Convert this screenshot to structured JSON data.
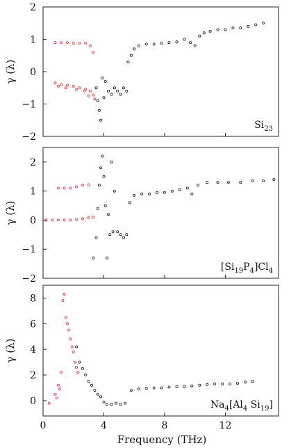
{
  "chart_data": {
    "type": "scatter",
    "shared_x": {
      "label": "Frequency (THz)",
      "ticks": [
        0,
        4,
        8,
        12
      ],
      "range": [
        0,
        15.5
      ]
    },
    "colors": {
      "red": "#e8323c",
      "black": "#1a1a1a"
    },
    "panels": [
      {
        "id": "si23",
        "label_parts": [
          {
            "t": "Si"
          },
          {
            "t": "23",
            "sub": true
          }
        ],
        "ylabel": "γ (λ)",
        "ylim": [
          -2,
          2
        ],
        "yticks": [
          -2,
          -1,
          0,
          1,
          2
        ],
        "series": [
          {
            "name": "red",
            "color": "#e8323c",
            "points": [
              [
                0.8,
                0.9
              ],
              [
                1.2,
                0.9
              ],
              [
                1.6,
                0.9
              ],
              [
                2.0,
                0.88
              ],
              [
                2.4,
                0.88
              ],
              [
                2.8,
                0.88
              ],
              [
                3.1,
                0.8
              ],
              [
                3.3,
                0.6
              ],
              [
                0.8,
                -0.35
              ],
              [
                1.2,
                -0.4
              ],
              [
                1.6,
                -0.42
              ],
              [
                2.0,
                -0.45
              ],
              [
                2.4,
                -0.5
              ],
              [
                2.8,
                -0.55
              ],
              [
                3.1,
                -0.6
              ],
              [
                3.3,
                -0.72
              ],
              [
                1.0,
                -0.45
              ],
              [
                1.5,
                -0.5
              ],
              [
                2.2,
                -0.55
              ],
              [
                2.7,
                -0.6
              ],
              [
                3.0,
                -0.75
              ],
              [
                3.4,
                -0.85
              ]
            ]
          },
          {
            "name": "black",
            "color": "#1a1a1a",
            "points": [
              [
                3.5,
                -0.5
              ],
              [
                3.6,
                -0.9
              ],
              [
                3.7,
                -1.2
              ],
              [
                3.8,
                -1.5
              ],
              [
                3.9,
                -0.2
              ],
              [
                4.0,
                -0.8
              ],
              [
                4.1,
                -0.3
              ],
              [
                4.3,
                -0.6
              ],
              [
                4.5,
                -0.7
              ],
              [
                4.7,
                -0.5
              ],
              [
                4.9,
                -0.6
              ],
              [
                5.1,
                -0.7
              ],
              [
                5.3,
                -0.5
              ],
              [
                5.5,
                -0.6
              ],
              [
                5.6,
                0.3
              ],
              [
                5.8,
                0.5
              ],
              [
                6.0,
                0.7
              ],
              [
                6.3,
                0.8
              ],
              [
                6.8,
                0.85
              ],
              [
                7.3,
                0.85
              ],
              [
                7.8,
                0.88
              ],
              [
                8.3,
                0.9
              ],
              [
                8.8,
                0.92
              ],
              [
                9.3,
                1.0
              ],
              [
                9.7,
                0.9
              ],
              [
                10.0,
                0.8
              ],
              [
                10.3,
                1.1
              ],
              [
                10.6,
                1.2
              ],
              [
                11.0,
                1.25
              ],
              [
                11.5,
                1.3
              ],
              [
                12.0,
                1.3
              ],
              [
                12.5,
                1.35
              ],
              [
                13.0,
                1.35
              ],
              [
                13.5,
                1.4
              ],
              [
                14.0,
                1.45
              ],
              [
                14.5,
                1.5
              ]
            ]
          }
        ]
      },
      {
        "id": "si19p4cl4",
        "label_parts": [
          {
            "t": "[Si"
          },
          {
            "t": "19",
            "sub": true
          },
          {
            "t": "P"
          },
          {
            "t": "4",
            "sub": true
          },
          {
            "t": "]Cl"
          },
          {
            "t": "4",
            "sub": true
          }
        ],
        "ylabel": "γ (λ)",
        "ylim": [
          -2,
          2.5
        ],
        "yticks": [
          -2,
          -1,
          0,
          1,
          2
        ],
        "series": [
          {
            "name": "red",
            "color": "#e8323c",
            "points": [
              [
                0.2,
                0.0
              ],
              [
                0.6,
                0.0
              ],
              [
                1.0,
                0.0
              ],
              [
                1.4,
                0.0
              ],
              [
                1.8,
                0.0
              ],
              [
                2.2,
                0.02
              ],
              [
                2.6,
                0.05
              ],
              [
                3.0,
                0.08
              ],
              [
                3.3,
                0.1
              ],
              [
                1.0,
                1.1
              ],
              [
                1.4,
                1.1
              ],
              [
                1.8,
                1.1
              ],
              [
                2.2,
                1.15
              ],
              [
                2.6,
                1.2
              ],
              [
                3.0,
                1.22
              ]
            ]
          },
          {
            "name": "black",
            "color": "#1a1a1a",
            "points": [
              [
                3.3,
                -1.3
              ],
              [
                3.5,
                -0.6
              ],
              [
                3.6,
                0.4
              ],
              [
                3.7,
                1.2
              ],
              [
                3.8,
                1.8
              ],
              [
                3.9,
                2.2
              ],
              [
                4.0,
                1.5
              ],
              [
                4.1,
                0.5
              ],
              [
                4.2,
                -1.3
              ],
              [
                4.3,
                0.2
              ],
              [
                4.4,
                -0.5
              ],
              [
                4.5,
                2.0
              ],
              [
                4.6,
                -0.4
              ],
              [
                4.7,
                1.0
              ],
              [
                4.9,
                -0.4
              ],
              [
                5.1,
                -0.5
              ],
              [
                5.3,
                -0.6
              ],
              [
                5.5,
                -0.5
              ],
              [
                5.7,
                0.6
              ],
              [
                6.0,
                0.85
              ],
              [
                6.5,
                0.9
              ],
              [
                7.0,
                0.9
              ],
              [
                7.5,
                0.95
              ],
              [
                8.0,
                0.95
              ],
              [
                8.5,
                1.0
              ],
              [
                9.0,
                1.05
              ],
              [
                9.5,
                1.1
              ],
              [
                9.8,
                0.9
              ],
              [
                10.2,
                1.2
              ],
              [
                10.8,
                1.3
              ],
              [
                11.5,
                1.3
              ],
              [
                12.2,
                1.3
              ],
              [
                13.0,
                1.3
              ],
              [
                13.8,
                1.35
              ],
              [
                14.5,
                1.35
              ],
              [
                15.2,
                1.4
              ]
            ]
          }
        ]
      },
      {
        "id": "na4al4si19",
        "label_parts": [
          {
            "t": "Na"
          },
          {
            "t": "4",
            "sub": true
          },
          {
            "t": "[Al"
          },
          {
            "t": "4",
            "sub": true
          },
          {
            "t": " Si"
          },
          {
            "t": "19",
            "sub": true
          },
          {
            "t": "]"
          }
        ],
        "ylabel": "γ (λ)",
        "ylim": [
          -1.2,
          9
        ],
        "yticks": [
          0,
          2,
          4,
          6,
          8
        ],
        "series": [
          {
            "name": "red",
            "color": "#e8323c",
            "points": [
              [
                0.4,
                -0.2
              ],
              [
                0.8,
                0.5
              ],
              [
                1.0,
                1.2
              ],
              [
                1.2,
                2.2
              ],
              [
                1.3,
                7.8
              ],
              [
                1.4,
                8.3
              ],
              [
                1.5,
                6.5
              ],
              [
                1.6,
                6.0
              ],
              [
                1.7,
                5.5
              ],
              [
                1.8,
                4.8
              ],
              [
                1.9,
                4.2
              ],
              [
                2.0,
                3.8
              ],
              [
                2.1,
                3.0
              ],
              [
                2.2,
                2.6
              ],
              [
                2.3,
                2.2
              ],
              [
                1.1,
                0.9
              ],
              [
                0.9,
                0.2
              ]
            ]
          },
          {
            "name": "black",
            "color": "#1a1a1a",
            "points": [
              [
                2.2,
                4.2
              ],
              [
                2.4,
                3.0
              ],
              [
                2.6,
                2.5
              ],
              [
                2.8,
                2.0
              ],
              [
                3.0,
                1.5
              ],
              [
                3.2,
                1.2
              ],
              [
                3.4,
                0.8
              ],
              [
                3.6,
                0.5
              ],
              [
                3.8,
                0.3
              ],
              [
                4.0,
                -0.1
              ],
              [
                4.2,
                -0.3
              ],
              [
                4.5,
                -0.3
              ],
              [
                4.8,
                -0.2
              ],
              [
                5.1,
                -0.3
              ],
              [
                5.4,
                -0.2
              ],
              [
                5.8,
                0.8
              ],
              [
                6.3,
                0.9
              ],
              [
                6.8,
                0.95
              ],
              [
                7.3,
                1.0
              ],
              [
                7.8,
                1.0
              ],
              [
                8.3,
                1.05
              ],
              [
                8.8,
                1.1
              ],
              [
                9.3,
                1.1
              ],
              [
                9.8,
                1.15
              ],
              [
                10.3,
                1.2
              ],
              [
                10.8,
                1.25
              ],
              [
                11.3,
                1.3
              ],
              [
                11.8,
                1.3
              ],
              [
                12.3,
                1.3
              ],
              [
                12.8,
                1.35
              ],
              [
                13.3,
                1.45
              ],
              [
                13.8,
                1.5
              ]
            ]
          }
        ]
      }
    ]
  }
}
